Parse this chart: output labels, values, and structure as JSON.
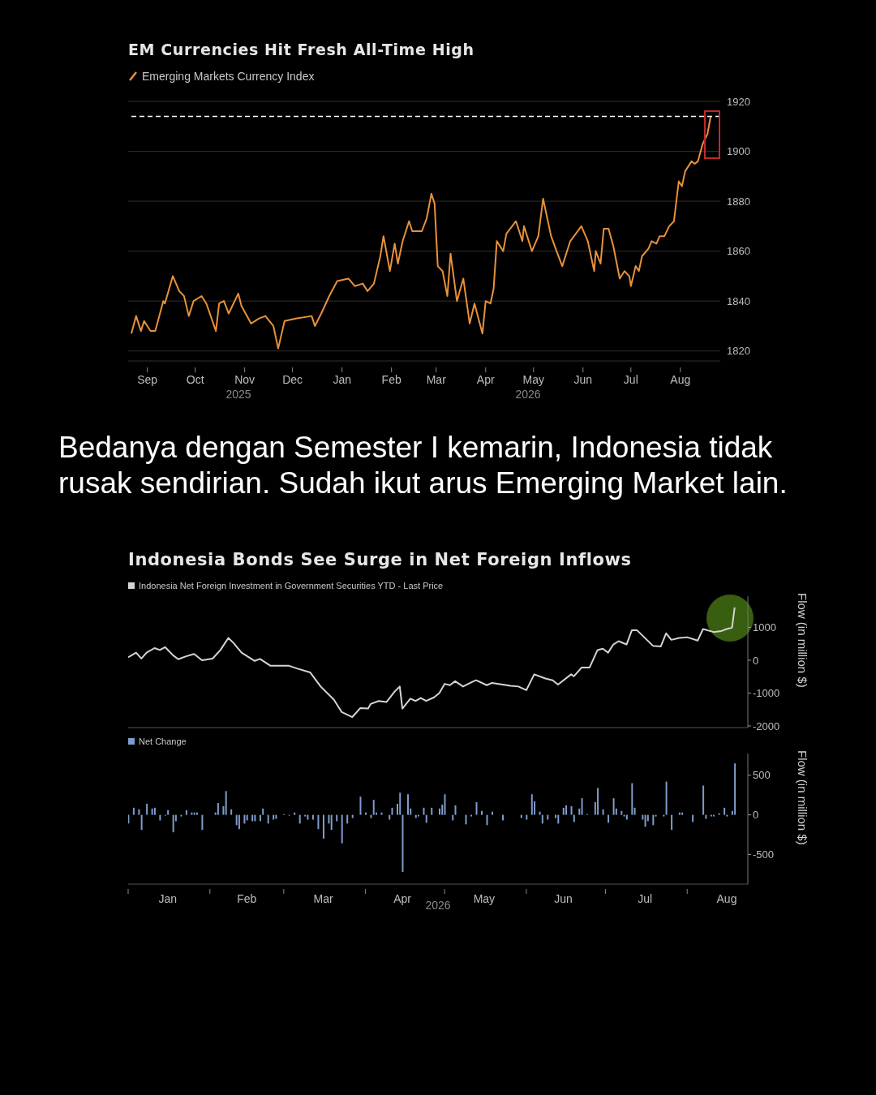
{
  "chart_data": [
    {
      "type": "line",
      "title": "EM Currencies Hit Fresh All-Time High",
      "legend": "top left",
      "grid": "y",
      "marker": "none",
      "line_style": "solid",
      "x": [
        "2025-08-22",
        "2025-08-25",
        "2025-08-28",
        "2025-08-30",
        "2025-09-03",
        "2025-09-06",
        "2025-09-11",
        "2025-09-12",
        "2025-09-17",
        "2025-09-21",
        "2025-09-24",
        "2025-09-27",
        "2025-09-30",
        "2025-10-05",
        "2025-10-08",
        "2025-10-14",
        "2025-10-16",
        "2025-10-19",
        "2025-10-22",
        "2025-10-28",
        "2025-10-30",
        "2025-11-05",
        "2025-11-10",
        "2025-11-14",
        "2025-11-19",
        "2025-11-22",
        "2025-11-26",
        "2025-12-03",
        "2025-12-13",
        "2025-12-15",
        "2025-12-19",
        "2025-12-24",
        "2025-12-29",
        "2026-01-05",
        "2026-01-09",
        "2026-01-14",
        "2026-01-17",
        "2026-01-21",
        "2026-01-25",
        "2026-01-27",
        "2026-01-31",
        "2026-02-03",
        "2026-02-05",
        "2026-02-08",
        "2026-02-12",
        "2026-02-14",
        "2026-02-20",
        "2026-02-23",
        "2026-02-26",
        "2026-02-28",
        "2026-03-02",
        "2026-03-05",
        "2026-03-08",
        "2026-03-10",
        "2026-03-14",
        "2026-03-18",
        "2026-03-22",
        "2026-03-25",
        "2026-03-30",
        "2026-04-01",
        "2026-04-04",
        "2026-04-06",
        "2026-04-08",
        "2026-04-12",
        "2026-04-14",
        "2026-04-20",
        "2026-04-24",
        "2026-04-25",
        "2026-04-30",
        "2026-05-04",
        "2026-05-07",
        "2026-05-09",
        "2026-05-12",
        "2026-05-16",
        "2026-05-19",
        "2026-05-24",
        "2026-05-31",
        "2026-06-04",
        "2026-06-08",
        "2026-06-09",
        "2026-06-12",
        "2026-06-14",
        "2026-06-17",
        "2026-06-20",
        "2026-06-24",
        "2026-06-27",
        "2026-06-30",
        "2026-07-01",
        "2026-07-04",
        "2026-07-06",
        "2026-07-08",
        "2026-07-12",
        "2026-07-14",
        "2026-07-17",
        "2026-07-19",
        "2026-07-22",
        "2026-07-25",
        "2026-07-28",
        "2026-07-31",
        "2026-08-02",
        "2026-08-04",
        "2026-08-08",
        "2026-08-10",
        "2026-08-12",
        "2026-08-15",
        "2026-08-18",
        "2026-08-20"
      ],
      "series": [
        {
          "name": "Emerging Markets Currency Index",
          "color": "#e8913a",
          "values": [
            1827,
            1834,
            1828,
            1832,
            1828,
            1828,
            1840,
            1839,
            1850,
            1844,
            1842,
            1834,
            1840,
            1842,
            1839,
            1828,
            1839,
            1840,
            1835,
            1843,
            1838,
            1831,
            1833,
            1834,
            1830,
            1821,
            1832,
            1833,
            1834,
            1830,
            1835,
            1842,
            1848,
            1849,
            1846,
            1847,
            1844,
            1847,
            1858,
            1866,
            1852,
            1863,
            1855,
            1864,
            1872,
            1868,
            1868,
            1873,
            1883,
            1879,
            1854,
            1852,
            1842,
            1859,
            1840,
            1849,
            1831,
            1839,
            1827,
            1840,
            1839,
            1845,
            1864,
            1860,
            1867,
            1872,
            1864,
            1870,
            1860,
            1866,
            1881,
            1875,
            1866,
            1859,
            1854,
            1864,
            1870,
            1864,
            1852,
            1860,
            1855,
            1869,
            1869,
            1862,
            1849,
            1852,
            1850,
            1846,
            1854,
            1852,
            1858,
            1861,
            1864,
            1863,
            1866,
            1866,
            1870,
            1872,
            1888,
            1886,
            1892,
            1896,
            1895,
            1896,
            1903,
            1907,
            1914
          ]
        }
      ],
      "xlim": [
        "2025-08-20",
        "2026-08-26"
      ],
      "xticks": [
        {
          "value": "2025-09-01",
          "label": "Sep"
        },
        {
          "value": "2025-10-01",
          "label": "Oct"
        },
        {
          "value": "2025-11-01",
          "label": "Nov"
        },
        {
          "value": "2025-12-01",
          "label": "Dec"
        },
        {
          "value": "2026-01-01",
          "label": "Jan"
        },
        {
          "value": "2026-02-01",
          "label": "Feb"
        },
        {
          "value": "2026-03-01",
          "label": "Mar"
        },
        {
          "value": "2026-04-01",
          "label": "Apr"
        },
        {
          "value": "2026-05-01",
          "label": "May"
        },
        {
          "value": "2026-06-01",
          "label": "Jun"
        },
        {
          "value": "2026-07-01",
          "label": "Jul"
        },
        {
          "value": "2026-08-01",
          "label": "Aug"
        }
      ],
      "ylim": [
        1816,
        1920
      ],
      "yticks": [
        1820,
        1840,
        1860,
        1880,
        1900,
        1920
      ],
      "ref_lines": [
        {
          "axis": "y",
          "value": 1914,
          "color": "#ffffff",
          "line_style": "dashed"
        }
      ],
      "annotations": [
        "2025",
        "2026",
        "Bedanya dengan Semester I kemarin, Indonesia tidak rusak sendirian. Sudah ikut arus Emerging Market lain."
      ]
    },
    {
      "type": "line",
      "title": "Indonesia Bonds See Surge in Net Foreign Inflows",
      "legend": "top left",
      "marker": "none",
      "line_style": "solid",
      "tick_labels": "y",
      "ylabel": "Flow (in million $)",
      "x": [
        "2026-01-01",
        "2026-01-04",
        "2026-01-06",
        "2026-01-08",
        "2026-01-11",
        "2026-01-13",
        "2026-01-15",
        "2026-01-18",
        "2026-01-20",
        "2026-01-23",
        "2026-01-26",
        "2026-01-29",
        "2026-02-02",
        "2026-02-05",
        "2026-02-08",
        "2026-02-10",
        "2026-02-13",
        "2026-02-18",
        "2026-02-20",
        "2026-02-24",
        "2026-03-03",
        "2026-03-06",
        "2026-03-11",
        "2026-03-15",
        "2026-03-20",
        "2026-03-23",
        "2026-03-27",
        "2026-03-30",
        "2026-04-02",
        "2026-04-03",
        "2026-04-06",
        "2026-04-09",
        "2026-04-12",
        "2026-04-14",
        "2026-04-15",
        "2026-04-18",
        "2026-04-20",
        "2026-04-22",
        "2026-04-24",
        "2026-04-27",
        "2026-04-29",
        "2026-05-01",
        "2026-05-03",
        "2026-05-05",
        "2026-05-08",
        "2026-05-12",
        "2026-05-13",
        "2026-05-17",
        "2026-05-19",
        "2026-05-26",
        "2026-05-29",
        "2026-06-01",
        "2026-06-04",
        "2026-06-08",
        "2026-06-11",
        "2026-06-13",
        "2026-06-18",
        "2026-06-19",
        "2026-06-22",
        "2026-06-25",
        "2026-06-28",
        "2026-06-30",
        "2026-07-02",
        "2026-07-04",
        "2026-07-06",
        "2026-07-09",
        "2026-07-11",
        "2026-07-13",
        "2026-07-19",
        "2026-07-22",
        "2026-07-24",
        "2026-07-26",
        "2026-07-29",
        "2026-08-01",
        "2026-08-05",
        "2026-08-07",
        "2026-08-11",
        "2026-08-14",
        "2026-08-16",
        "2026-08-18",
        "2026-08-19"
      ],
      "series": [
        {
          "name": "Indonesia Net Foreign Investment in Government Securities YTD - Last Price",
          "color": "#d4d4d4",
          "values": [
            90,
            230,
            50,
            230,
            370,
            310,
            400,
            150,
            30,
            120,
            190,
            0,
            50,
            310,
            680,
            520,
            230,
            -20,
            40,
            -170,
            -170,
            -250,
            -370,
            -800,
            -1200,
            -1580,
            -1730,
            -1460,
            -1470,
            -1330,
            -1240,
            -1270,
            -960,
            -800,
            -1470,
            -1170,
            -1240,
            -1150,
            -1240,
            -1130,
            -1000,
            -720,
            -760,
            -640,
            -800,
            -640,
            -610,
            -760,
            -690,
            -780,
            -800,
            -910,
            -430,
            -550,
            -610,
            -740,
            -430,
            -490,
            -220,
            -220,
            310,
            350,
            230,
            480,
            580,
            480,
            910,
            910,
            440,
            420,
            820,
            620,
            680,
            700,
            600,
            950,
            860,
            890,
            950,
            990,
            1610
          ]
        }
      ],
      "xlim": [
        "2026-01-01",
        "2026-08-24"
      ],
      "ylim": [
        -2050,
        1950
      ],
      "yticks": [
        -2000,
        -1000,
        0,
        1000
      ]
    },
    {
      "type": "bar",
      "legend": "top left",
      "ylabel": "Flow (in million $)",
      "x": [
        "2026-01-01",
        "2026-01-03",
        "2026-01-05",
        "2026-01-06",
        "2026-01-08",
        "2026-01-10",
        "2026-01-11",
        "2026-01-13",
        "2026-01-15",
        "2026-01-16",
        "2026-01-18",
        "2026-01-19",
        "2026-01-21",
        "2026-01-23",
        "2026-01-25",
        "2026-01-26",
        "2026-01-27",
        "2026-01-29",
        "2026-02-03",
        "2026-02-04",
        "2026-02-06",
        "2026-02-07",
        "2026-02-09",
        "2026-02-11",
        "2026-02-12",
        "2026-02-14",
        "2026-02-15",
        "2026-02-17",
        "2026-02-18",
        "2026-02-20",
        "2026-02-21",
        "2026-02-23",
        "2026-02-25",
        "2026-02-26",
        "2026-03-01",
        "2026-03-03",
        "2026-03-05",
        "2026-03-07",
        "2026-03-09",
        "2026-03-10",
        "2026-03-12",
        "2026-03-14",
        "2026-03-16",
        "2026-03-18",
        "2026-03-19",
        "2026-03-21",
        "2026-03-23",
        "2026-03-25",
        "2026-03-27",
        "2026-03-30",
        "2026-04-01",
        "2026-04-03",
        "2026-04-04",
        "2026-04-05",
        "2026-04-07",
        "2026-04-10",
        "2026-04-11",
        "2026-04-13",
        "2026-04-14",
        "2026-04-15",
        "2026-04-17",
        "2026-04-18",
        "2026-04-20",
        "2026-04-21",
        "2026-04-23",
        "2026-04-24",
        "2026-04-26",
        "2026-04-29",
        "2026-04-30",
        "2026-05-01",
        "2026-05-04",
        "2026-05-05",
        "2026-05-09",
        "2026-05-11",
        "2026-05-13",
        "2026-05-15",
        "2026-05-17",
        "2026-05-19",
        "2026-05-23",
        "2026-05-30",
        "2026-06-01",
        "2026-06-03",
        "2026-06-04",
        "2026-06-06",
        "2026-06-07",
        "2026-06-09",
        "2026-06-12",
        "2026-06-13",
        "2026-06-15",
        "2026-06-16",
        "2026-06-18",
        "2026-06-19",
        "2026-06-21",
        "2026-06-22",
        "2026-06-24",
        "2026-06-27",
        "2026-06-28",
        "2026-06-30",
        "2026-07-02",
        "2026-07-04",
        "2026-07-05",
        "2026-07-07",
        "2026-07-08",
        "2026-07-09",
        "2026-07-11",
        "2026-07-12",
        "2026-07-15",
        "2026-07-16",
        "2026-07-17",
        "2026-07-19",
        "2026-07-20",
        "2026-07-23",
        "2026-07-24",
        "2026-07-26",
        "2026-07-29",
        "2026-07-30",
        "2026-08-03",
        "2026-08-07",
        "2026-08-08",
        "2026-08-10",
        "2026-08-11",
        "2026-08-13",
        "2026-08-15",
        "2026-08-16",
        "2026-08-18",
        "2026-08-19"
      ],
      "series": [
        {
          "name": "Net Change",
          "color": "#7f9ccc",
          "values": [
            -110,
            90,
            70,
            -190,
            140,
            80,
            90,
            -70,
            -10,
            60,
            -220,
            -80,
            -20,
            60,
            30,
            30,
            30,
            -190,
            30,
            150,
            110,
            300,
            70,
            -130,
            -180,
            -110,
            -70,
            -80,
            -80,
            -80,
            80,
            -110,
            -60,
            -50,
            10,
            -10,
            30,
            -110,
            -20,
            -60,
            -60,
            -180,
            -300,
            -110,
            -190,
            -80,
            -360,
            -110,
            -40,
            230,
            30,
            -40,
            190,
            30,
            30,
            -60,
            90,
            140,
            280,
            -720,
            260,
            80,
            -40,
            -20,
            90,
            -100,
            90,
            80,
            130,
            260,
            -70,
            120,
            -120,
            -20,
            160,
            50,
            -130,
            40,
            -70,
            -40,
            -60,
            260,
            170,
            40,
            -110,
            -60,
            -40,
            -110,
            90,
            120,
            110,
            -90,
            80,
            210,
            10,
            160,
            340,
            70,
            -100,
            210,
            80,
            50,
            -20,
            -60,
            400,
            90,
            -60,
            -150,
            -80,
            -130,
            -20,
            -20,
            420,
            -190,
            30,
            30,
            -90,
            370,
            -50,
            -20,
            -20,
            20,
            90,
            -20,
            50,
            650
          ]
        }
      ],
      "xlim": [
        "2026-01-01",
        "2026-08-24"
      ],
      "xticks": [
        {
          "value": "2026-01-01",
          "label": null
        },
        {
          "value": "2026-01-16",
          "label": "Jan"
        },
        {
          "value": "2026-02-01",
          "label": null
        },
        {
          "value": "2026-02-15",
          "label": "Feb"
        },
        {
          "value": "2026-03-01",
          "label": null
        },
        {
          "value": "2026-03-16",
          "label": "Mar"
        },
        {
          "value": "2026-04-01",
          "label": null
        },
        {
          "value": "2026-04-15",
          "label": "Apr"
        },
        {
          "value": "2026-05-01",
          "label": null
        },
        {
          "value": "2026-05-16",
          "label": "May"
        },
        {
          "value": "2026-06-01",
          "label": null
        },
        {
          "value": "2026-06-15",
          "label": "Jun"
        },
        {
          "value": "2026-07-01",
          "label": null
        },
        {
          "value": "2026-07-16",
          "label": "Jul"
        },
        {
          "value": "2026-08-01",
          "label": null
        },
        {
          "value": "2026-08-16",
          "label": "Aug"
        }
      ],
      "ylim": [
        -875,
        775
      ],
      "yticks": [
        -500,
        0,
        500
      ],
      "annotations": [
        "2026"
      ]
    }
  ]
}
